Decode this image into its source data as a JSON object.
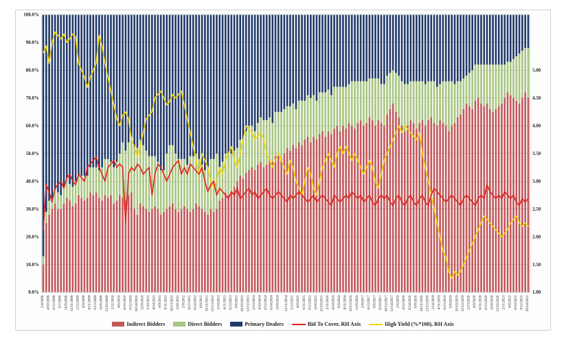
{
  "chart": {
    "type": "stacked-bar-plus-dual-lines",
    "background_color": "#fdfdfd",
    "plot_background": "#ffffff",
    "plot_border_color": "#d0d0d0",
    "grid_color": "#aaaaaa",
    "grid_width": 0.5,
    "left_axis": {
      "min": 0,
      "max": 100,
      "step": 10,
      "format_suffix": ".0%",
      "ticks": [
        "0.0%",
        "10.0%",
        "20.0%",
        "30.0%",
        "40.0%",
        "50.0%",
        "60.0%",
        "70.0%",
        "80.0%",
        "90.0%",
        "100.0%"
      ],
      "fontsize": 7,
      "fontweight": "bold"
    },
    "right_axis": {
      "min": 1.0,
      "max": 5.0,
      "step": 0.5,
      "ticks": [
        "1.00",
        "1.50",
        "2.00",
        "2.50",
        "3.00",
        "3.50",
        "4.00",
        "4.50",
        "5.00"
      ],
      "fontsize": 7,
      "fontweight": "bold"
    },
    "x_axis": {
      "labels": [
        "2/4/2008",
        "4/10/2008",
        "6/12/2008",
        "8/7/2008",
        "10/9/2008",
        "12/11/2008",
        "2/12/2009",
        "4/9/2009",
        "6/11/2009",
        "8/13/2009",
        "10/8/2009",
        "12/10/2009",
        "2/11/2010",
        "4/8/2010",
        "6/10/2010",
        "8/12/2010",
        "10/14/2010",
        "12/9/2010",
        "2/10/2011",
        "4/14/2011",
        "6/9/2011",
        "8/11/2011",
        "10/13/2011",
        "12/8/2011",
        "2/9/2012",
        "4/12/2012",
        "6/14/2012",
        "8/9/2012",
        "10/11/2012",
        "12/13/2012",
        "2/14/2013",
        "4/11/2013",
        "6/13/2013",
        "8/8/2013",
        "10/10/2013",
        "12/12/2013",
        "2/13/2014",
        "4/10/2014",
        "6/12/2014",
        "8/14/2014",
        "10/9/2014",
        "12/11/2014",
        "2/12/2015",
        "4/9/2015",
        "6/11/2015",
        "8/13/2015",
        "10/8/2015",
        "12/10/2015",
        "2/11/2016",
        "4/14/2016",
        "6/9/2016",
        "8/11/2016",
        "10/13/2016",
        "12/8/2016",
        "2/9/2017",
        "4/13/2017",
        "6/8/2017",
        "8/10/2017",
        "10/12/2017",
        "12/14/2017",
        "2/8/2018",
        "4/12/2018",
        "6/14/2018",
        "8/9/2018",
        "10/11/2018",
        "12/13/2018",
        "2/14/2019",
        "4/11/2019",
        "6/13/2019",
        "8/8/2019",
        "10/10/2019",
        "12/12/2019",
        "2/13/2020",
        "4/9/2020",
        "6/11/2020",
        "8/13/2020",
        "10/8/2020",
        "12/10/2020",
        "2/11/2021",
        "4/8/2021",
        "6/10/2021",
        "8/12/2021",
        "10/14/2021"
      ],
      "rotation": -90,
      "fontsize": 5
    },
    "series": {
      "indirect": {
        "label": "Indirect Bidders",
        "type": "bar",
        "color": "#c1595b",
        "legend_swatch": "bar"
      },
      "direct": {
        "label": "Direct Bidders",
        "type": "bar",
        "color": "#a8c581",
        "legend_swatch": "bar"
      },
      "primary": {
        "label": "Primary Dealers",
        "type": "bar",
        "color": "#223a6a",
        "legend_swatch": "bar"
      },
      "bid_to_cover": {
        "label": "Bid To Cover, RH Axis",
        "type": "line",
        "color": "#e2201c",
        "line_width": 1.6,
        "axis": "right",
        "legend_swatch": "line"
      },
      "high_yield": {
        "label": "High Yield (%*100), RH Axis",
        "type": "line",
        "color": "#f5d50a",
        "line_width": 1.6,
        "axis": "right",
        "legend_swatch": "line"
      }
    },
    "data": {
      "n": 166,
      "indirect": [
        10,
        25,
        28,
        30,
        32,
        30,
        30,
        32,
        34,
        33,
        31,
        32,
        35,
        34,
        33,
        34,
        36,
        35,
        36,
        34,
        33,
        35,
        34,
        35,
        32,
        33,
        35,
        34,
        33,
        35,
        36,
        30,
        28,
        32,
        31,
        30,
        29,
        30,
        31,
        30,
        28,
        29,
        30,
        31,
        32,
        30,
        29,
        30,
        31,
        30,
        29,
        30,
        32,
        31,
        30,
        29,
        28,
        30,
        29,
        30,
        33,
        34,
        36,
        35,
        36,
        38,
        40,
        42,
        41,
        43,
        44,
        45,
        44,
        46,
        47,
        45,
        46,
        48,
        47,
        49,
        50,
        48,
        50,
        52,
        51,
        53,
        52,
        54,
        53,
        55,
        56,
        54,
        56,
        55,
        57,
        58,
        56,
        58,
        57,
        59,
        60,
        58,
        60,
        59,
        61,
        60,
        59,
        61,
        62,
        60,
        61,
        63,
        62,
        60,
        62,
        61,
        60,
        64,
        66,
        68,
        65,
        63,
        60,
        58,
        60,
        62,
        61,
        59,
        61,
        62,
        60,
        62,
        63,
        61,
        60,
        62,
        61,
        60,
        58,
        60,
        61,
        63,
        64,
        66,
        68,
        67,
        66,
        69,
        70,
        68,
        67,
        68,
        66,
        65,
        66,
        67,
        68,
        70,
        72,
        71,
        70,
        69,
        68,
        70,
        72,
        70
      ],
      "direct": [
        3,
        4,
        5,
        4,
        5,
        6,
        5,
        6,
        7,
        6,
        7,
        8,
        7,
        8,
        9,
        8,
        9,
        10,
        9,
        10,
        12,
        13,
        14,
        12,
        13,
        14,
        15,
        20,
        18,
        19,
        20,
        22,
        24,
        23,
        22,
        21,
        20,
        19,
        18,
        17,
        16,
        15,
        20,
        22,
        21,
        20,
        19,
        18,
        17,
        16,
        20,
        19,
        18,
        17,
        16,
        15,
        17,
        18,
        19,
        20,
        12,
        13,
        14,
        15,
        14,
        13,
        12,
        13,
        14,
        15,
        16,
        15,
        14,
        15,
        16,
        17,
        16,
        15,
        14,
        16,
        15,
        17,
        16,
        15,
        16,
        15,
        14,
        15,
        16,
        14,
        15,
        16,
        15,
        14,
        15,
        14,
        16,
        15,
        14,
        15,
        14,
        16,
        14,
        15,
        14,
        16,
        17,
        15,
        14,
        16,
        15,
        14,
        15,
        17,
        15,
        14,
        15,
        14,
        13,
        12,
        14,
        15,
        16,
        17,
        15,
        14,
        15,
        17,
        15,
        14,
        15,
        14,
        13,
        15,
        14,
        13,
        15,
        16,
        18,
        16,
        14,
        13,
        12,
        11,
        10,
        12,
        14,
        13,
        12,
        14,
        15,
        14,
        16,
        17,
        16,
        15,
        14,
        12,
        11,
        12,
        14,
        16,
        18,
        17,
        16,
        18
      ],
      "bid_to_cover": [
        1.9,
        2.55,
        2.45,
        2.3,
        2.5,
        2.55,
        2.6,
        2.5,
        2.65,
        2.7,
        2.6,
        2.55,
        2.7,
        2.65,
        2.6,
        2.8,
        2.85,
        2.9,
        2.95,
        2.8,
        2.7,
        2.6,
        2.8,
        2.85,
        2.9,
        2.8,
        2.85,
        2.8,
        2.0,
        2.7,
        2.8,
        2.75,
        2.85,
        2.8,
        2.7,
        2.75,
        2.8,
        2.4,
        2.7,
        2.85,
        2.8,
        2.7,
        2.6,
        2.7,
        2.8,
        2.85,
        2.9,
        2.7,
        2.8,
        2.7,
        2.85,
        2.8,
        2.75,
        2.7,
        2.8,
        2.6,
        2.45,
        2.55,
        2.6,
        2.4,
        2.5,
        2.45,
        2.4,
        2.35,
        2.45,
        2.4,
        2.5,
        2.35,
        2.4,
        2.45,
        2.5,
        2.4,
        2.45,
        2.35,
        2.4,
        2.45,
        2.5,
        2.4,
        2.35,
        2.4,
        2.45,
        2.4,
        2.35,
        2.3,
        2.4,
        2.35,
        2.4,
        2.45,
        2.4,
        2.35,
        2.3,
        2.35,
        2.4,
        2.3,
        2.35,
        2.4,
        2.35,
        2.3,
        2.25,
        2.4,
        2.35,
        2.3,
        2.35,
        2.4,
        2.35,
        2.45,
        2.4,
        2.35,
        2.4,
        2.3,
        2.35,
        2.4,
        2.3,
        2.25,
        2.35,
        2.4,
        2.35,
        2.4,
        2.3,
        2.25,
        2.35,
        2.4,
        2.3,
        2.25,
        2.35,
        2.4,
        2.3,
        2.25,
        2.35,
        2.4,
        2.3,
        2.25,
        2.4,
        2.5,
        2.45,
        2.4,
        2.35,
        2.3,
        2.35,
        2.4,
        2.35,
        2.3,
        2.25,
        2.35,
        2.4,
        2.35,
        2.3,
        2.25,
        2.35,
        2.4,
        2.35,
        2.55,
        2.45,
        2.4,
        2.35,
        2.4,
        2.35,
        2.45,
        2.4,
        2.35,
        2.4,
        2.3,
        2.25,
        2.35,
        2.3,
        2.35
      ],
      "high_yield": [
        4.45,
        4.55,
        4.3,
        4.6,
        4.75,
        4.7,
        4.65,
        4.72,
        4.6,
        4.65,
        4.72,
        4.68,
        4.3,
        4.2,
        4.1,
        3.95,
        4.1,
        4.2,
        4.3,
        4.7,
        4.55,
        4.3,
        4.1,
        3.9,
        3.7,
        3.5,
        3.4,
        3.55,
        3.6,
        3.5,
        3.2,
        3.1,
        2.95,
        3.1,
        3.3,
        3.5,
        3.55,
        3.6,
        3.8,
        3.85,
        3.9,
        3.8,
        3.7,
        3.75,
        3.85,
        3.8,
        3.85,
        3.9,
        3.7,
        3.5,
        3.3,
        3.1,
        2.9,
        2.7,
        3.0,
        2.9,
        2.8,
        2.6,
        2.5,
        2.6,
        2.8,
        2.7,
        2.9,
        3.0,
        3.1,
        2.9,
        2.8,
        3.0,
        3.2,
        3.4,
        3.35,
        3.3,
        3.2,
        3.25,
        3.3,
        3.2,
        3.0,
        2.9,
        2.8,
        2.9,
        3.0,
        2.9,
        2.8,
        2.7,
        2.9,
        2.8,
        2.6,
        2.5,
        2.4,
        2.6,
        2.8,
        2.7,
        2.5,
        2.4,
        2.6,
        2.8,
        2.9,
        3.0,
        2.9,
        2.8,
        3.0,
        3.1,
        3.0,
        3.1,
        3.0,
        2.9,
        3.0,
        2.9,
        2.8,
        2.7,
        2.8,
        2.9,
        2.8,
        2.6,
        2.5,
        2.7,
        2.9,
        3.0,
        3.1,
        3.2,
        3.3,
        3.4,
        3.3,
        3.4,
        3.35,
        3.3,
        3.25,
        3.2,
        3.3,
        3.0,
        2.8,
        2.6,
        2.4,
        2.2,
        2.0,
        1.8,
        1.6,
        1.5,
        1.3,
        1.2,
        1.3,
        1.25,
        1.3,
        1.4,
        1.5,
        1.6,
        1.7,
        1.8,
        1.9,
        2.0,
        2.1,
        2.05,
        2.0,
        1.95,
        1.9,
        1.85,
        1.8,
        1.85,
        1.9,
        2.0,
        2.05,
        2.1,
        2.0,
        1.95,
        2.0,
        1.95
      ]
    },
    "legend": {
      "fontsize": 8,
      "fontweight": "bold",
      "font_family": "Times New Roman",
      "order": [
        "indirect",
        "direct",
        "primary",
        "bid_to_cover",
        "high_yield"
      ]
    }
  }
}
